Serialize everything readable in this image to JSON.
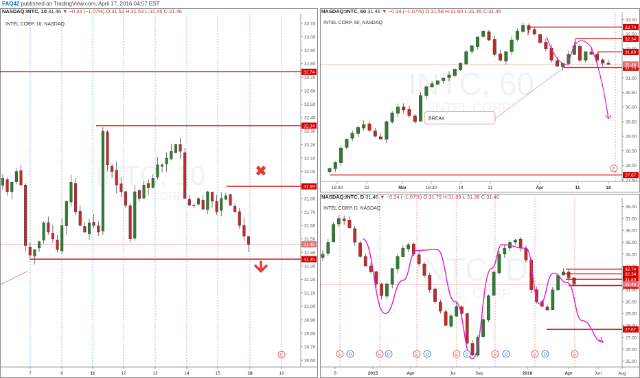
{
  "header": {
    "user": "FAQ42",
    "text": " published on TradingView.com, April 17, 2016 04:57 EST"
  },
  "colors": {
    "candle_up": "#2e7d32",
    "candle_down": "#c62828",
    "level": "#d50000",
    "curve": "#e020d0",
    "vline_blue": "#1e6fd0",
    "vline_red": "#e53935"
  },
  "panels": {
    "left": {
      "ohlc": {
        "symbol": "NASDAQ:INTC, 10",
        "price": "31.46",
        "change": "−0.34 (−1.07%)",
        "o": "31.53",
        "h": "31.53",
        "l": "31.45",
        "c": "31.46"
      },
      "sub_label": "INTEL CORP, 10, NASDAQ",
      "watermark_big": "INTC, 10",
      "watermark_small": "INTEL CORP",
      "x_labels": [
        "7",
        "8",
        "11",
        "12",
        "13",
        "14",
        "15",
        "18",
        "19"
      ],
      "y_ticks": [
        "33.10",
        "33.00",
        "32.90",
        "32.80",
        "32.70",
        "32.60",
        "32.50",
        "32.40",
        "32.30",
        "32.20",
        "32.10",
        "32.00",
        "31.90",
        "31.80",
        "31.70",
        "31.60",
        "31.50",
        "31.40",
        "31.30",
        "31.20",
        "31.10",
        "31.00",
        "30.90",
        "30.80",
        "30.70",
        "30.60"
      ],
      "levels": [
        "32.74",
        "32.34",
        "31.89",
        "31.35"
      ],
      "last_price": "31.46",
      "event_marker": "E"
    },
    "top_right": {
      "ohlc": {
        "symbol": "NASDAQ:INTC, 60",
        "price": "31.46",
        "change": "−0.34 (−1.07%)",
        "o": "31.58",
        "h": "31.60",
        "l": "31.45",
        "c": "31.46"
      },
      "sub_label": "INTEL CORP, 60, NASDAQ",
      "watermark_big": "INTC, 60",
      "watermark_small": "INTEL CORP",
      "x_labels": [
        "18:30",
        "22",
        "Mar",
        "18:30",
        "14",
        "21",
        "Apr",
        "11",
        "18"
      ],
      "y_ticks": [
        "33.00",
        "32.50",
        "32.00",
        "31.50",
        "31.00",
        "30.50",
        "30.00",
        "29.50",
        "29.00",
        "28.50",
        "28.00",
        "27.50"
      ],
      "levels": [
        "32.74",
        "32.34",
        "31.89",
        "31.35",
        "27.67"
      ],
      "last_price": "31.46",
      "annotation": "BREAK",
      "event_marker": "E"
    },
    "bottom_right": {
      "ohlc": {
        "symbol": "NASDAQ:INTC, D",
        "price": "31.46",
        "change": "−0.34 (−1.07%)",
        "o": "31.79",
        "h": "31.89",
        "l": "31.38",
        "c": "31.46"
      },
      "sub_label": "INTEL CORP, D, NASDAQ",
      "watermark_big": "INTC, D",
      "watermark_small": "INTEL CORP",
      "x_labels": [
        "6",
        "2015",
        "Apr",
        "Jul",
        "Sep",
        "2016",
        "Apr",
        "Jun",
        "Aug"
      ],
      "y_ticks": [
        "38.00",
        "37.00",
        "36.00",
        "35.00",
        "34.00",
        "33.00",
        "32.00",
        "31.00",
        "30.00",
        "29.00",
        "28.00",
        "27.00",
        "26.00",
        "25.00"
      ],
      "levels": [
        "32.74",
        "32.34",
        "31.89",
        "31.35",
        "27.67"
      ],
      "last_price": "31.46",
      "event_markers": [
        "E",
        "D",
        "E",
        "D",
        "E",
        "D",
        "E",
        "D",
        "E",
        "D",
        "E",
        "D",
        "E"
      ]
    }
  },
  "chart_data": [
    {
      "type": "candlestick",
      "timeframe": "10",
      "x_labels": [
        "7",
        "8",
        "11",
        "12",
        "13",
        "14",
        "15",
        "18",
        "19"
      ],
      "ylim": [
        30.55,
        33.15
      ],
      "closes_approx": [
        31.95,
        31.85,
        31.92,
        32.0,
        31.9,
        31.45,
        31.38,
        31.42,
        31.48,
        31.62,
        31.55,
        31.5,
        31.42,
        31.6,
        31.78,
        31.92,
        31.7,
        31.6,
        31.55,
        31.62,
        31.6,
        31.55,
        32.3,
        32.05,
        32.0,
        31.9,
        31.85,
        31.75,
        31.5,
        31.85,
        31.8,
        31.9,
        31.88,
        31.95,
        32.05,
        32.05,
        32.1,
        32.15,
        32.2,
        32.15,
        31.8,
        31.75,
        31.75,
        31.8,
        31.72,
        31.85,
        31.78,
        31.7,
        31.8,
        31.82,
        31.75,
        31.7,
        31.6,
        31.52,
        31.46
      ],
      "horizontal_levels": [
        32.74,
        32.34,
        31.89,
        31.35
      ],
      "last_price": 31.46
    },
    {
      "type": "candlestick",
      "timeframe": "60",
      "x_labels": [
        "18:30",
        "22",
        "Mar",
        "18:30",
        "14",
        "21",
        "Apr",
        "11",
        "18"
      ],
      "ylim": [
        27.45,
        33.15
      ],
      "closes_approx": [
        27.9,
        28.1,
        28.6,
        28.9,
        29.1,
        29.3,
        29.4,
        29.2,
        29.0,
        28.9,
        29.5,
        29.8,
        30.0,
        29.9,
        29.7,
        29.5,
        30.4,
        30.7,
        30.8,
        30.9,
        31.0,
        31.1,
        31.3,
        31.5,
        31.9,
        32.1,
        32.4,
        32.6,
        32.3,
        31.8,
        31.6,
        31.9,
        32.3,
        32.6,
        32.8,
        32.65,
        32.5,
        32.2,
        32.0,
        31.6,
        31.4,
        31.5,
        31.8,
        32.1,
        31.6,
        31.9,
        31.8,
        31.6,
        31.5,
        31.46
      ],
      "horizontal_levels": [
        32.74,
        32.34,
        31.89,
        31.35,
        27.67
      ],
      "last_price": 31.46,
      "annotation": "BREAK"
    },
    {
      "type": "candlestick",
      "timeframe": "D",
      "x_labels": [
        "6",
        "2015",
        "Apr",
        "Jul",
        "Sep",
        "2016",
        "Apr",
        "Jun",
        "Aug"
      ],
      "ylim": [
        24.5,
        38.5
      ],
      "closes_approx": [
        34.0,
        35.0,
        36.5,
        37.0,
        36.8,
        36.2,
        35.0,
        33.8,
        33.0,
        32.5,
        31.5,
        30.5,
        31.5,
        32.8,
        33.8,
        34.5,
        34.8,
        34.0,
        33.2,
        32.2,
        31.0,
        30.0,
        29.2,
        28.0,
        28.8,
        29.6,
        29.0,
        26.5,
        25.5,
        27.0,
        28.5,
        30.5,
        32.5,
        34.0,
        34.5,
        35.0,
        35.2,
        34.5,
        33.5,
        31.0,
        30.0,
        29.6,
        29.3,
        31.0,
        32.2,
        32.5,
        32.0,
        31.46
      ],
      "horizontal_levels": [
        32.74,
        32.34,
        31.89,
        31.35,
        27.67
      ],
      "last_price": 31.46
    }
  ]
}
